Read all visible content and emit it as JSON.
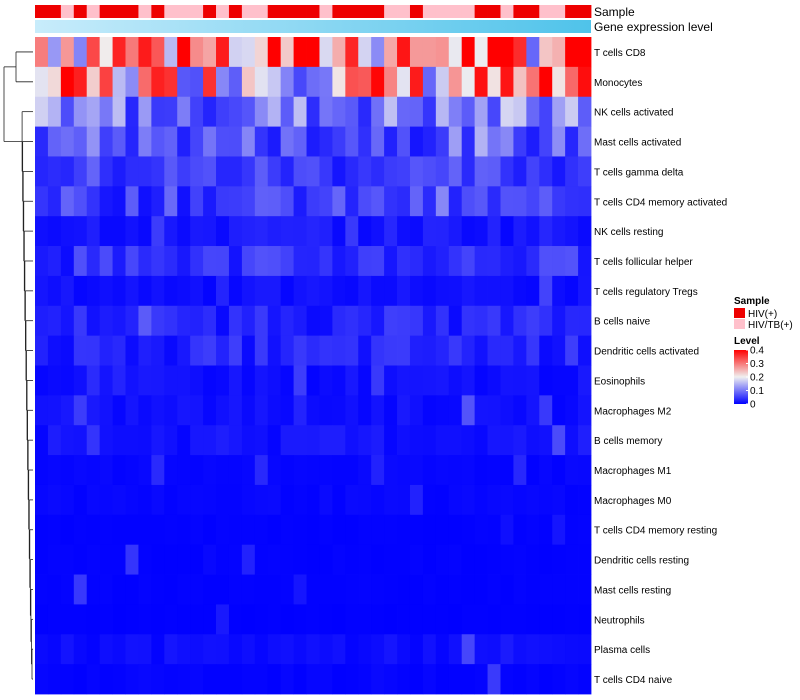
{
  "chart_data": {
    "type": "heatmap",
    "annotation_tracks": [
      "Sample",
      "Gene expression level"
    ],
    "sample_groups": [
      "HIV(+)",
      "HIV(+)",
      "HIV/TB(+)",
      "HIV(+)",
      "HIV/TB(+)",
      "HIV(+)",
      "HIV(+)",
      "HIV(+)",
      "HIV/TB(+)",
      "HIV(+)",
      "HIV/TB(+)",
      "HIV/TB(+)",
      "HIV/TB(+)",
      "HIV(+)",
      "HIV/TB(+)",
      "HIV(+)",
      "HIV/TB(+)",
      "HIV/TB(+)",
      "HIV(+)",
      "HIV(+)",
      "HIV(+)",
      "HIV(+)",
      "HIV/TB(+)",
      "HIV(+)",
      "HIV(+)",
      "HIV(+)",
      "HIV(+)",
      "HIV/TB(+)",
      "HIV/TB(+)",
      "HIV(+)",
      "HIV/TB(+)",
      "HIV/TB(+)",
      "HIV/TB(+)",
      "HIV/TB(+)",
      "HIV(+)",
      "HIV(+)",
      "HIV/TB(+)",
      "HIV(+)",
      "HIV(+)",
      "HIV/TB(+)",
      "HIV/TB(+)",
      "HIV(+)",
      "HIV(+)"
    ],
    "rows": [
      "T cells CD8",
      "Monocytes",
      "NK cells activated",
      "Mast cells activated",
      "T cells gamma delta",
      "T cells CD4 memory activated",
      "NK cells resting",
      "T cells follicular helper",
      "T cells regulatory  Tregs",
      "B cells naive",
      "Dendritic cells activated",
      "Eosinophils",
      "Macrophages M2",
      "B cells memory",
      "Macrophages M1",
      "Macrophages M0",
      "T cells CD4 memory resting",
      "Dendritic cells resting",
      "Mast cells resting",
      "Neutrophils",
      "Plasma cells",
      "T cells CD4 naive"
    ],
    "row_means": [
      0.3,
      0.24,
      0.1,
      0.07,
      0.05,
      0.05,
      0.02,
      0.04,
      0.012,
      0.03,
      0.03,
      0.012,
      0.012,
      0.015,
      0.005,
      0.005,
      0.002,
      0.002,
      0.002,
      0.001,
      0.01,
      0.003
    ],
    "level_range": [
      0,
      0.4
    ],
    "legend": {
      "sample_title": "Sample",
      "sample_items": [
        {
          "label": "HIV(+)",
          "color": "#ee0000"
        },
        {
          "label": "HIV/TB(+)",
          "color": "#ffc0cb"
        }
      ],
      "level_title": "Level",
      "level_ticks": [
        "0.4",
        "0.3",
        "0.2",
        "0.1",
        "0"
      ],
      "level_values": [
        0.4,
        0.3,
        0.2,
        0.1,
        0
      ]
    },
    "colors": {
      "low": "#0000ff",
      "mid": "#f0f0f0",
      "high": "#ff0000",
      "annotation_gradient_start": "#c8ecfb",
      "annotation_gradient_end": "#4fc3ea"
    }
  }
}
